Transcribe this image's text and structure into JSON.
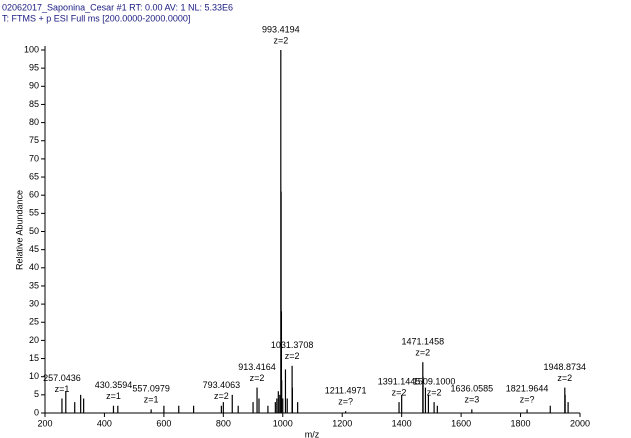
{
  "chart_data": {
    "type": "spectrum",
    "header": [
      "02062017_Saponina_Cesar #1  RT: 0.00  AV: 1  NL: 5.33E6",
      "T: FTMS + p ESI Full ms [200.0000-2000.0000]"
    ],
    "y_label": "Relative Abundance",
    "x_label": "m/z",
    "color": "#000000",
    "xlim": [
      200,
      2000
    ],
    "xticks": [
      200,
      400,
      600,
      800,
      1000,
      1200,
      1400,
      1600,
      1800,
      2000
    ],
    "ylim": [
      0,
      100
    ],
    "yticks": [
      0,
      5,
      10,
      15,
      20,
      25,
      30,
      35,
      40,
      45,
      50,
      55,
      60,
      65,
      70,
      75,
      80,
      85,
      90,
      95,
      100
    ],
    "peaks": [
      {
        "mz": 257.0436,
        "intensity": 4,
        "label": "257.0436",
        "charge": "z=1"
      },
      {
        "mz": 270,
        "intensity": 6
      },
      {
        "mz": 300,
        "intensity": 3
      },
      {
        "mz": 320,
        "intensity": 5
      },
      {
        "mz": 330,
        "intensity": 4
      },
      {
        "mz": 430.3594,
        "intensity": 2,
        "label": "430.3594",
        "charge": "z=1"
      },
      {
        "mz": 445,
        "intensity": 2
      },
      {
        "mz": 557.0979,
        "intensity": 1,
        "label": "557.0979",
        "charge": "z=1"
      },
      {
        "mz": 600,
        "intensity": 2
      },
      {
        "mz": 650,
        "intensity": 2
      },
      {
        "mz": 700,
        "intensity": 2
      },
      {
        "mz": 793.4063,
        "intensity": 2,
        "label": "793.4063",
        "charge": "z=2"
      },
      {
        "mz": 800,
        "intensity": 3
      },
      {
        "mz": 830,
        "intensity": 5
      },
      {
        "mz": 850,
        "intensity": 2
      },
      {
        "mz": 900,
        "intensity": 3
      },
      {
        "mz": 913.4164,
        "intensity": 7,
        "label": "913.4164",
        "charge": "z=2"
      },
      {
        "mz": 920,
        "intensity": 4
      },
      {
        "mz": 950,
        "intensity": 2
      },
      {
        "mz": 975,
        "intensity": 3
      },
      {
        "mz": 980,
        "intensity": 4
      },
      {
        "mz": 985,
        "intensity": 6
      },
      {
        "mz": 990,
        "intensity": 5
      },
      {
        "mz": 993.4194,
        "intensity": 100,
        "label": "993.4194",
        "charge": "z=2"
      },
      {
        "mz": 994.42,
        "intensity": 61
      },
      {
        "mz": 995.42,
        "intensity": 28
      },
      {
        "mz": 996.4,
        "intensity": 9
      },
      {
        "mz": 1000,
        "intensity": 4
      },
      {
        "mz": 1009,
        "intensity": 12
      },
      {
        "mz": 1015,
        "intensity": 4
      },
      {
        "mz": 1031.3708,
        "intensity": 13,
        "label": "1031.3708",
        "charge": "z=2"
      },
      {
        "mz": 1032.4,
        "intensity": 7
      },
      {
        "mz": 1050,
        "intensity": 3
      },
      {
        "mz": 1211.4971,
        "intensity": 0.5,
        "label": "1211.4971",
        "charge": "z=?"
      },
      {
        "mz": 1391.1445,
        "intensity": 3,
        "label": "1391.1445",
        "charge": "z=2"
      },
      {
        "mz": 1400,
        "intensity": 5
      },
      {
        "mz": 1471.1458,
        "intensity": 14,
        "label": "1471.1458",
        "charge": "z=2"
      },
      {
        "mz": 1472,
        "intensity": 10
      },
      {
        "mz": 1480,
        "intensity": 7
      },
      {
        "mz": 1490,
        "intensity": 5
      },
      {
        "mz": 1509.1,
        "intensity": 3,
        "label": "1509.1000",
        "charge": "z=2"
      },
      {
        "mz": 1520,
        "intensity": 2
      },
      {
        "mz": 1636.0585,
        "intensity": 1,
        "label": "1636.0585",
        "charge": "z=3"
      },
      {
        "mz": 1821.9644,
        "intensity": 1,
        "label": "1821.9644",
        "charge": "z=?"
      },
      {
        "mz": 1900,
        "intensity": 2
      },
      {
        "mz": 1948.8734,
        "intensity": 7,
        "label": "1948.8734",
        "charge": "z=2"
      },
      {
        "mz": 1950,
        "intensity": 5
      },
      {
        "mz": 1960,
        "intensity": 3
      }
    ]
  }
}
